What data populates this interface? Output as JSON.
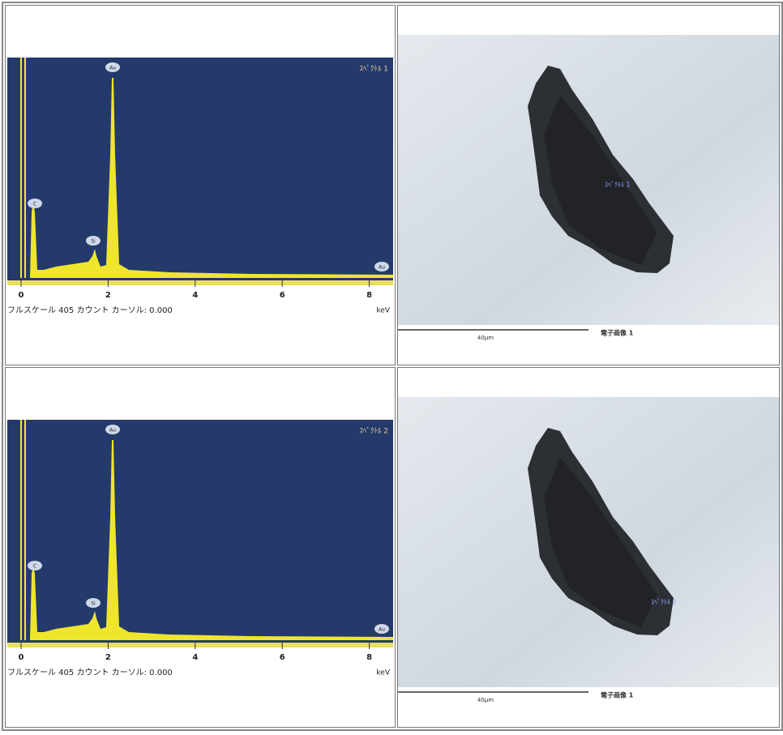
{
  "rows": [
    {
      "spectrum": {
        "name": "ｽﾍﾟｸﾄﾙ 1",
        "peaks": [
          "Au",
          "C",
          "Si",
          "Au"
        ],
        "xticks": [
          0,
          2,
          4,
          6,
          8
        ],
        "unit": "keV",
        "footer": "フルスケール 405 カウント カーソル: 0.000"
      },
      "image": {
        "label": "ｽﾍﾟｸﾄﾙ 1",
        "scale": "40μm",
        "caption": "電子画像 1"
      }
    },
    {
      "spectrum": {
        "name": "ｽﾍﾟｸﾄﾙ 2",
        "peaks": [
          "Au",
          "C",
          "Si",
          "Au"
        ],
        "xticks": [
          0,
          2,
          4,
          6,
          8
        ],
        "unit": "keV",
        "footer": "フルスケール 405 カウント カーソル: 0.000"
      },
      "image": {
        "label": "ｽﾍﾟｸﾄﾙ 2",
        "scale": "40μm",
        "caption": "電子画像 1"
      }
    }
  ]
}
